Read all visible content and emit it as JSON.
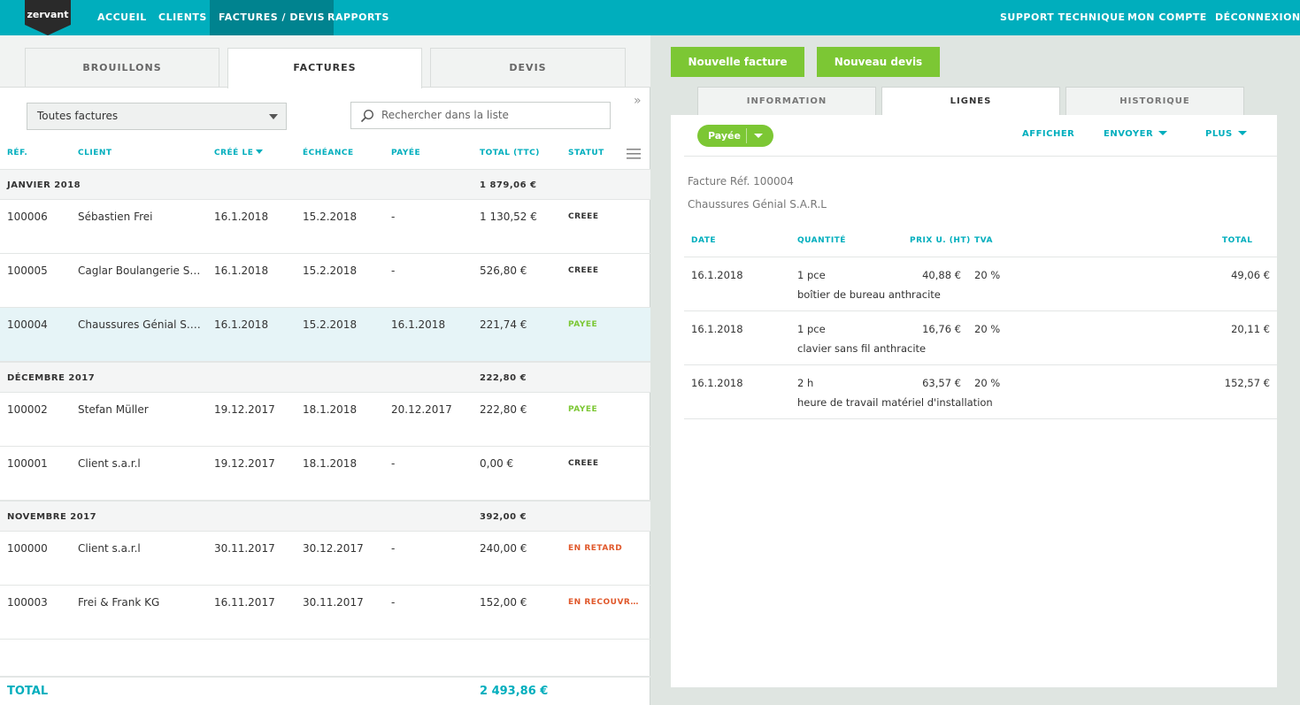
{
  "nav": {
    "logo_text": "zervant",
    "left": [
      "ACCUEIL",
      "CLIENTS",
      "FACTURES / DEVIS",
      "RAPPORTS"
    ],
    "right": [
      "SUPPORT TECHNIQUE",
      "MON COMPTE",
      "DÉCONNEXION"
    ]
  },
  "left_tabs": [
    "BROUILLONS",
    "FACTURES",
    "DEVIS"
  ],
  "filter": {
    "selected": "Toutes factures"
  },
  "search": {
    "placeholder": "Rechercher dans la liste"
  },
  "table": {
    "headers": [
      "RÉF.",
      "CLIENT",
      "CRÉÉ LE",
      "ÉCHÉANCE",
      "PAYÉE",
      "TOTAL (TTC)",
      "STATUT"
    ],
    "groups": [
      {
        "label": "JANVIER 2018",
        "total": "1 879,06 €"
      },
      {
        "label": "DÉCEMBRE 2017",
        "total": "222,80 €"
      },
      {
        "label": "NOVEMBRE 2017",
        "total": "392,00 €"
      }
    ],
    "rows": [
      {
        "ref": "100006",
        "client": "Sébastien Frei",
        "created": "16.1.2018",
        "due": "15.2.2018",
        "paid": "-",
        "total": "1 130,52 €",
        "status": "CRÉÉE"
      },
      {
        "ref": "100005",
        "client": "Caglar Boulangerie S.A.R.L",
        "created": "16.1.2018",
        "due": "15.2.2018",
        "paid": "-",
        "total": "526,80 €",
        "status": "CRÉÉE"
      },
      {
        "ref": "100004",
        "client": "Chaussures Génial S.A.R.L",
        "created": "16.1.2018",
        "due": "15.2.2018",
        "paid": "16.1.2018",
        "total": "221,74 €",
        "status": "PAYÉE"
      },
      {
        "ref": "100002",
        "client": "Stefan Müller",
        "created": "19.12.2017",
        "due": "18.1.2018",
        "paid": "20.12.2017",
        "total": "222,80 €",
        "status": "PAYÉE"
      },
      {
        "ref": "100001",
        "client": "Client s.a.r.l",
        "created": "19.12.2017",
        "due": "18.1.2018",
        "paid": "-",
        "total": "0,00 €",
        "status": "CRÉÉE"
      },
      {
        "ref": "100000",
        "client": "Client s.a.r.l",
        "created": "30.11.2017",
        "due": "30.12.2017",
        "paid": "-",
        "total": "240,00 €",
        "status": "EN RETARD"
      },
      {
        "ref": "100003",
        "client": "Frei & Frank KG",
        "created": "16.11.2017",
        "due": "30.11.2017",
        "paid": "-",
        "total": "152,00 €",
        "status": "EN RECOUVREMENT"
      }
    ],
    "total_label": "TOTAL",
    "total_value": "2 493,86 €"
  },
  "buttons": {
    "new_invoice": "Nouvelle facture",
    "new_quote": "Nouveau devis"
  },
  "right_tabs": [
    "INFORMATION",
    "LIGNES",
    "HISTORIQUE"
  ],
  "detail": {
    "status": "Payée",
    "actions": {
      "show": "AFFICHER",
      "send": "ENVOYER",
      "more": "PLUS"
    },
    "invoice_ref": "Facture Réf. 100004",
    "client": "Chaussures Génial S.A.R.L",
    "line_headers": [
      "DATE",
      "QUANTITÉ",
      "PRIX U. (HT)",
      "TVA",
      "TOTAL"
    ],
    "lines": [
      {
        "date": "16.1.2018",
        "qty": "1 pce",
        "desc": "boîtier de bureau anthracite",
        "price": "40,88 €",
        "vat": "20 %",
        "total": "49,06 €"
      },
      {
        "date": "16.1.2018",
        "qty": "1 pce",
        "desc": "clavier sans fil anthracite",
        "price": "16,76 €",
        "vat": "20 %",
        "total": "20,11 €"
      },
      {
        "date": "16.1.2018",
        "qty": "2 h",
        "desc": "heure de travail matériel d'installation",
        "price": "63,57 €",
        "vat": "20 %",
        "total": "152,57 €"
      }
    ]
  },
  "colors": {
    "primary": "#00aebd",
    "green": "#7cc734",
    "red": "#e0582b",
    "nav_active": "#00838f"
  }
}
